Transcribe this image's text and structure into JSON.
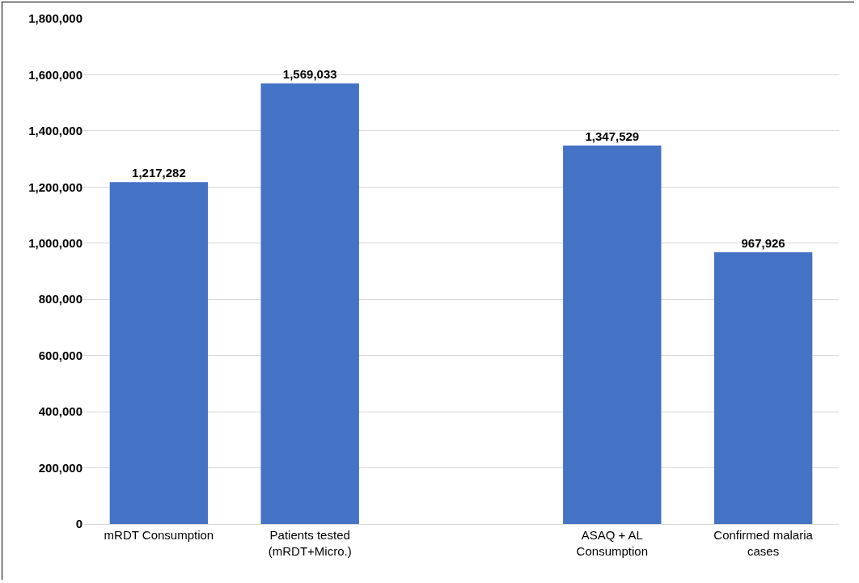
{
  "chart_data": {
    "type": "bar",
    "categories": [
      "mRDT Consumption",
      "Patients tested (mRDT+Micro.)",
      null,
      "ASAQ + AL Consumption",
      "Confirmed malaria cases"
    ],
    "values": [
      1217282,
      1569033,
      null,
      1347529,
      967926
    ],
    "color": "#4472c4",
    "ylim": [
      0,
      1800000
    ],
    "yticks": [
      {
        "value": 0,
        "label": "0"
      },
      {
        "value": 200000,
        "label": "200,000"
      },
      {
        "value": 400000,
        "label": "400,000"
      },
      {
        "value": 600000,
        "label": "600,000"
      },
      {
        "value": 800000,
        "label": "800,000"
      },
      {
        "value": 1000000,
        "label": "1,000,000"
      },
      {
        "value": 1200000,
        "label": "1,200,000"
      },
      {
        "value": 1400000,
        "label": "1,400,000"
      },
      {
        "value": 1600000,
        "label": "1,600,000"
      },
      {
        "value": 1800000,
        "label": "1,800,000"
      }
    ],
    "grid": "y",
    "value_labels": [
      "1,217,282",
      "1,569,033",
      null,
      "1,347,529",
      "967,926"
    ]
  }
}
